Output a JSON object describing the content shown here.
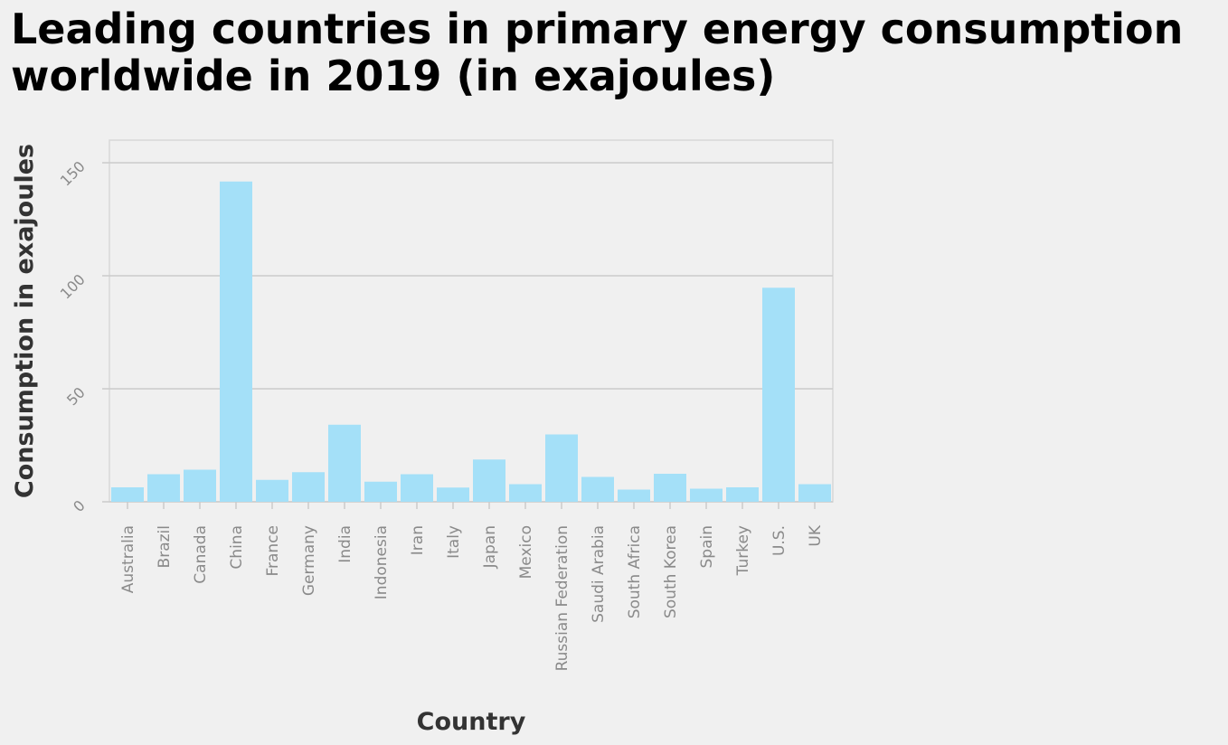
{
  "chart_data": {
    "type": "bar",
    "title": "Leading countries in primary energy consumption worldwide in 2019 (in exajoules)",
    "title_lines": [
      "Leading countries in primary energy consumption",
      "worldwide in 2019 (in exajoules)"
    ],
    "xlabel": "Country",
    "ylabel": "Consumption in exajoules",
    "ylim": [
      0,
      160
    ],
    "yticks": [
      0,
      50,
      100,
      150
    ],
    "categories": [
      "Australia",
      "Brazil",
      "Canada",
      "China",
      "France",
      "Germany",
      "India",
      "Indonesia",
      "Iran",
      "Italy",
      "Japan",
      "Mexico",
      "Russian Federation",
      "Saudi Arabia",
      "South Africa",
      "South Korea",
      "Spain",
      "Turkey",
      "U.S.",
      "UK"
    ],
    "values": [
      6.4,
      12.2,
      14.2,
      141.7,
      9.7,
      13.1,
      34.1,
      8.9,
      12.2,
      6.3,
      18.7,
      7.8,
      29.8,
      11.0,
      5.4,
      12.4,
      5.8,
      6.4,
      94.7,
      7.8
    ],
    "grid": true,
    "colors": {
      "bar": "#a4e0f8",
      "grid": "#cbcbcb",
      "frame": "#d7d7d7",
      "tick_label": "#8a8a8a",
      "axis_label": "#333333"
    }
  }
}
